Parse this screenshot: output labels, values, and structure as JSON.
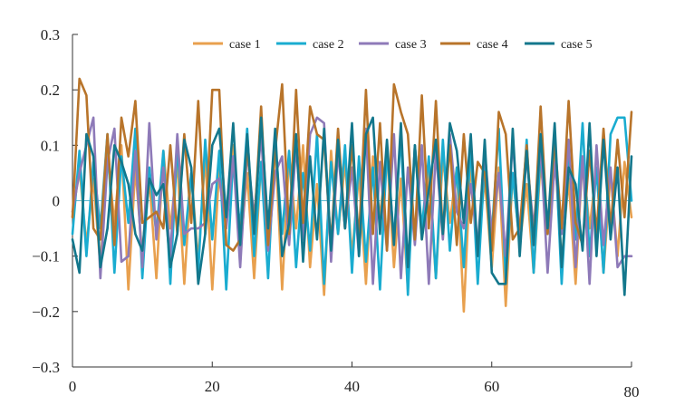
{
  "chart_data": {
    "type": "line",
    "title": "",
    "xlabel": "",
    "ylabel": "",
    "xlim": [
      0,
      80
    ],
    "ylim": [
      -0.3,
      0.3
    ],
    "x_ticks": [
      0,
      20,
      40,
      60,
      80
    ],
    "x_tick_labels": [
      "0",
      "20",
      "40",
      "60",
      "80"
    ],
    "y_ticks": [
      0.3,
      0.2,
      0.1,
      0,
      -0.1,
      -0.2,
      -0.3
    ],
    "y_tick_labels": [
      "0.3",
      "0.2",
      "0.1",
      "0",
      "−0.1",
      "−0.2",
      "−0.3"
    ],
    "grid": false,
    "legend_position": "top-right",
    "zero_line": true,
    "x": [
      0,
      1,
      2,
      3,
      4,
      5,
      6,
      7,
      8,
      9,
      10,
      11,
      12,
      13,
      14,
      15,
      16,
      17,
      18,
      19,
      20,
      21,
      22,
      23,
      24,
      25,
      26,
      27,
      28,
      29,
      30,
      31,
      32,
      33,
      34,
      35,
      36,
      37,
      38,
      39,
      40,
      41,
      42,
      43,
      44,
      45,
      46,
      47,
      48,
      49,
      50,
      51,
      52,
      53,
      54,
      55,
      56,
      57,
      58,
      59,
      60,
      61,
      62,
      63,
      64,
      65,
      66,
      67,
      68,
      69,
      70,
      71,
      72,
      73,
      74,
      75,
      76,
      77,
      78,
      79,
      80
    ],
    "series": [
      {
        "name": "case 1",
        "color": "#E8A04E",
        "values": [
          -0.03,
          0.06,
          -0.08,
          0.04,
          -0.12,
          0.08,
          -0.04,
          0.1,
          -0.16,
          0.06,
          -0.1,
          0.04,
          -0.14,
          0.09,
          -0.05,
          0.07,
          -0.15,
          0.05,
          -0.11,
          0.08,
          -0.16,
          0.06,
          -0.04,
          0.1,
          -0.09,
          0.05,
          -0.14,
          0.07,
          -0.08,
          0.11,
          -0.16,
          0.08,
          -0.05,
          0.1,
          -0.12,
          0.03,
          -0.17,
          0.09,
          -0.06,
          0.07,
          -0.1,
          0.05,
          -0.15,
          0.08,
          -0.03,
          0.09,
          -0.12,
          0.04,
          -0.16,
          0.1,
          -0.07,
          0.05,
          -0.14,
          0.08,
          -0.04,
          0.06,
          -0.2,
          0.07,
          -0.09,
          0.04,
          -0.12,
          0.06,
          -0.19,
          0.05,
          -0.08,
          0.03,
          -0.13,
          0.07,
          -0.06,
          0.09,
          -0.11,
          0.04,
          -0.15,
          0.08,
          -0.05,
          0.06,
          -0.13,
          0.05,
          -0.1,
          0.07,
          -0.03
        ]
      },
      {
        "name": "case 2",
        "color": "#1AACD0",
        "values": [
          -0.06,
          0.09,
          -0.1,
          0.07,
          -0.05,
          0.12,
          -0.13,
          0.08,
          -0.04,
          0.13,
          -0.14,
          0.06,
          -0.06,
          0.09,
          -0.15,
          0.1,
          -0.08,
          0.05,
          -0.13,
          0.11,
          -0.07,
          0.09,
          -0.16,
          0.08,
          -0.05,
          0.13,
          -0.1,
          0.07,
          -0.14,
          0.11,
          -0.06,
          0.09,
          -0.12,
          0.05,
          -0.09,
          0.12,
          -0.15,
          0.07,
          -0.06,
          0.1,
          -0.13,
          0.08,
          -0.11,
          0.06,
          -0.16,
          0.09,
          -0.07,
          0.12,
          -0.17,
          0.1,
          -0.05,
          0.08,
          -0.14,
          0.11,
          -0.09,
          0.06,
          -0.12,
          0.1,
          -0.15,
          0.07,
          -0.06,
          0.13,
          -0.14,
          0.05,
          -0.08,
          0.11,
          -0.13,
          0.09,
          -0.06,
          0.12,
          -0.15,
          0.08,
          -0.07,
          0.14,
          -0.1,
          0.06,
          -0.13,
          0.12,
          0.15,
          0.15,
          0.0
        ]
      },
      {
        "name": "case 3",
        "color": "#8E7AB8",
        "values": [
          -0.02,
          0.05,
          0.1,
          0.15,
          -0.14,
          0.07,
          0.13,
          -0.11,
          -0.1,
          0.09,
          -0.12,
          0.14,
          -0.07,
          0.06,
          -0.1,
          0.12,
          -0.06,
          -0.05,
          -0.05,
          -0.04,
          0.03,
          0.04,
          -0.05,
          0.08,
          -0.12,
          0.09,
          -0.03,
          0.12,
          -0.09,
          0.05,
          0.08,
          -0.08,
          0.1,
          -0.07,
          0.12,
          0.15,
          0.14,
          -0.11,
          0.09,
          -0.05,
          0.06,
          -0.1,
          0.13,
          -0.15,
          0.07,
          -0.09,
          0.12,
          -0.14,
          0.06,
          -0.08,
          0.1,
          -0.15,
          0.09,
          -0.07,
          0.12,
          -0.02,
          -0.05,
          0.03,
          -0.08,
          0.09,
          -0.06,
          0.05,
          -0.1,
          0.11,
          -0.07,
          0.08,
          -0.05,
          0.1,
          -0.13,
          0.07,
          -0.06,
          0.11,
          -0.12,
          0.08,
          -0.15,
          0.1,
          -0.08,
          0.06,
          -0.12,
          -0.1,
          -0.1
        ]
      },
      {
        "name": "case 4",
        "color": "#B8742A",
        "values": [
          -0.03,
          0.22,
          0.19,
          -0.05,
          -0.07,
          0.12,
          -0.08,
          0.15,
          0.08,
          0.18,
          -0.04,
          -0.03,
          -0.02,
          -0.05,
          0.1,
          -0.06,
          0.12,
          -0.04,
          0.18,
          -0.06,
          0.2,
          0.2,
          -0.08,
          -0.09,
          -0.07,
          0.1,
          -0.05,
          0.17,
          -0.08,
          0.09,
          0.21,
          -0.06,
          0.2,
          -0.04,
          0.17,
          0.12,
          0.11,
          -0.08,
          0.13,
          -0.05,
          0.1,
          -0.07,
          0.2,
          -0.06,
          0.14,
          -0.09,
          0.21,
          0.16,
          0.12,
          -0.07,
          0.19,
          -0.05,
          0.18,
          -0.06,
          0.1,
          -0.08,
          0.12,
          -0.04,
          0.07,
          0.05,
          -0.09,
          0.16,
          0.12,
          -0.07,
          -0.05,
          0.1,
          -0.08,
          0.17,
          -0.06,
          0.11,
          -0.05,
          0.18,
          -0.04,
          -0.08,
          0.09,
          -0.06,
          0.13,
          -0.05,
          0.11,
          -0.03,
          0.16
        ]
      },
      {
        "name": "case 5",
        "color": "#13778C",
        "values": [
          -0.07,
          -0.13,
          0.12,
          0.08,
          -0.12,
          -0.05,
          0.1,
          0.07,
          0.03,
          -0.06,
          -0.09,
          0.04,
          0.01,
          0.03,
          -0.12,
          -0.06,
          0.11,
          0.06,
          -0.15,
          -0.06,
          0.1,
          0.13,
          -0.03,
          0.14,
          -0.08,
          0.12,
          -0.06,
          0.15,
          -0.05,
          0.13,
          -0.1,
          -0.04,
          0.12,
          -0.11,
          0.08,
          -0.07,
          0.13,
          -0.09,
          0.11,
          -0.05,
          0.14,
          -0.1,
          0.12,
          0.15,
          -0.06,
          0.11,
          -0.08,
          0.14,
          -0.12,
          0.1,
          -0.07,
          0.02,
          0.11,
          -0.06,
          0.14,
          0.09,
          -0.04,
          0.12,
          -0.1,
          0.11,
          -0.13,
          -0.15,
          -0.15,
          0.13,
          -0.1,
          0.09,
          -0.08,
          0.12,
          -0.05,
          0.14,
          -0.12,
          0.06,
          0.03,
          -0.09,
          0.14,
          -0.1,
          0.11,
          -0.07,
          0.06,
          -0.17,
          0.08
        ]
      }
    ]
  }
}
